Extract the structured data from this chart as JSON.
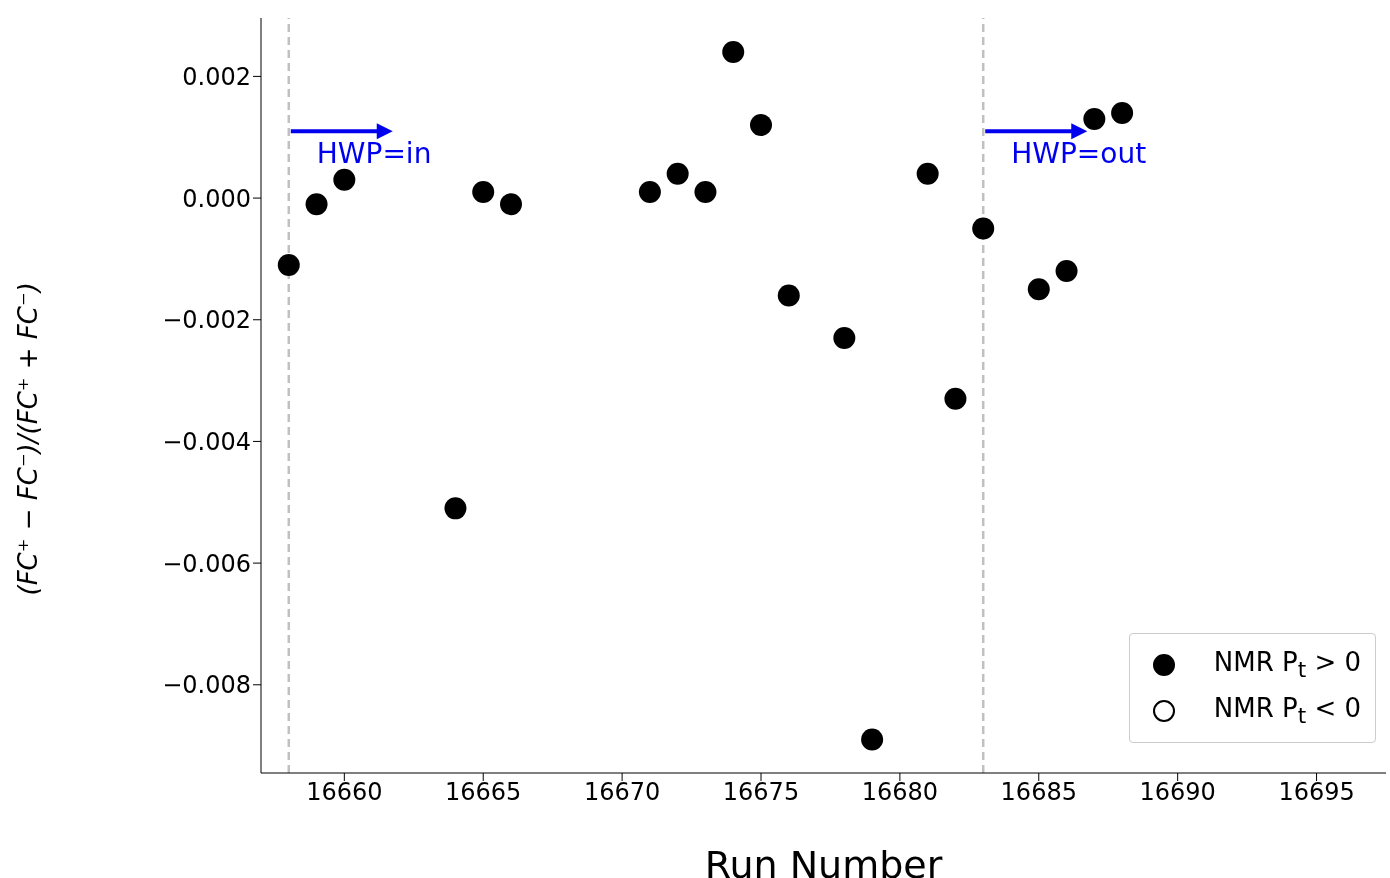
{
  "chart_data": {
    "type": "scatter",
    "xlabel": "Run Number",
    "ylabel": "(FC⁺ − FC⁻)/(FC⁺ + FC⁻)",
    "xlim": [
      16657,
      16697.5
    ],
    "xticks": [
      16660,
      16665,
      16670,
      16675,
      16680,
      16685,
      16690,
      16695
    ],
    "ylim": [
      -0.00945,
      0.00296
    ],
    "yticks": [
      {
        "value": -0.008,
        "label": "−0.008"
      },
      {
        "value": -0.006,
        "label": "−0.006"
      },
      {
        "value": -0.004,
        "label": "−0.004"
      },
      {
        "value": -0.002,
        "label": "−0.002"
      },
      {
        "value": 0,
        "label": "0.000"
      },
      {
        "value": 0.002,
        "label": "0.002"
      }
    ],
    "grid": false,
    "legend": "bottom right",
    "marker": "circle",
    "series": [
      {
        "name": "NMR P$_{t}$ > 0",
        "color": "#000000",
        "x": [
          16658,
          16659,
          16660,
          16664,
          16665,
          16666,
          16671,
          16672,
          16673,
          16674,
          16675,
          16676,
          16678,
          16679,
          16681,
          16682,
          16683,
          16685,
          16686,
          16687,
          16688
        ],
        "values": [
          -0.0011,
          -0.0001,
          0.0003,
          -0.0051,
          0.0001,
          -0.0001,
          0.0001,
          0.0004,
          0.0001,
          0.0024,
          0.0012,
          -0.0016,
          -0.0023,
          -0.0089,
          0.0004,
          -0.0033,
          -0.0005,
          -0.0015,
          -0.0012,
          0.0013,
          0.0014
        ]
      },
      {
        "name": "NMR P$_{t}$ < 0",
        "color": "#000000",
        "marker": "open"
      }
    ],
    "ref_lines": [
      {
        "axis": "x",
        "value": 16658,
        "color": "#c0c0c0",
        "line_style": "dashed"
      },
      {
        "axis": "x",
        "value": 16683,
        "color": "#c0c0c0",
        "line_style": "dashed"
      }
    ],
    "annotations": [
      {
        "text": "HWP=in",
        "x": 16658,
        "y": 0.0011
      },
      {
        "text": "HWP=out",
        "x": 16683,
        "y": 0.0011
      }
    ]
  }
}
